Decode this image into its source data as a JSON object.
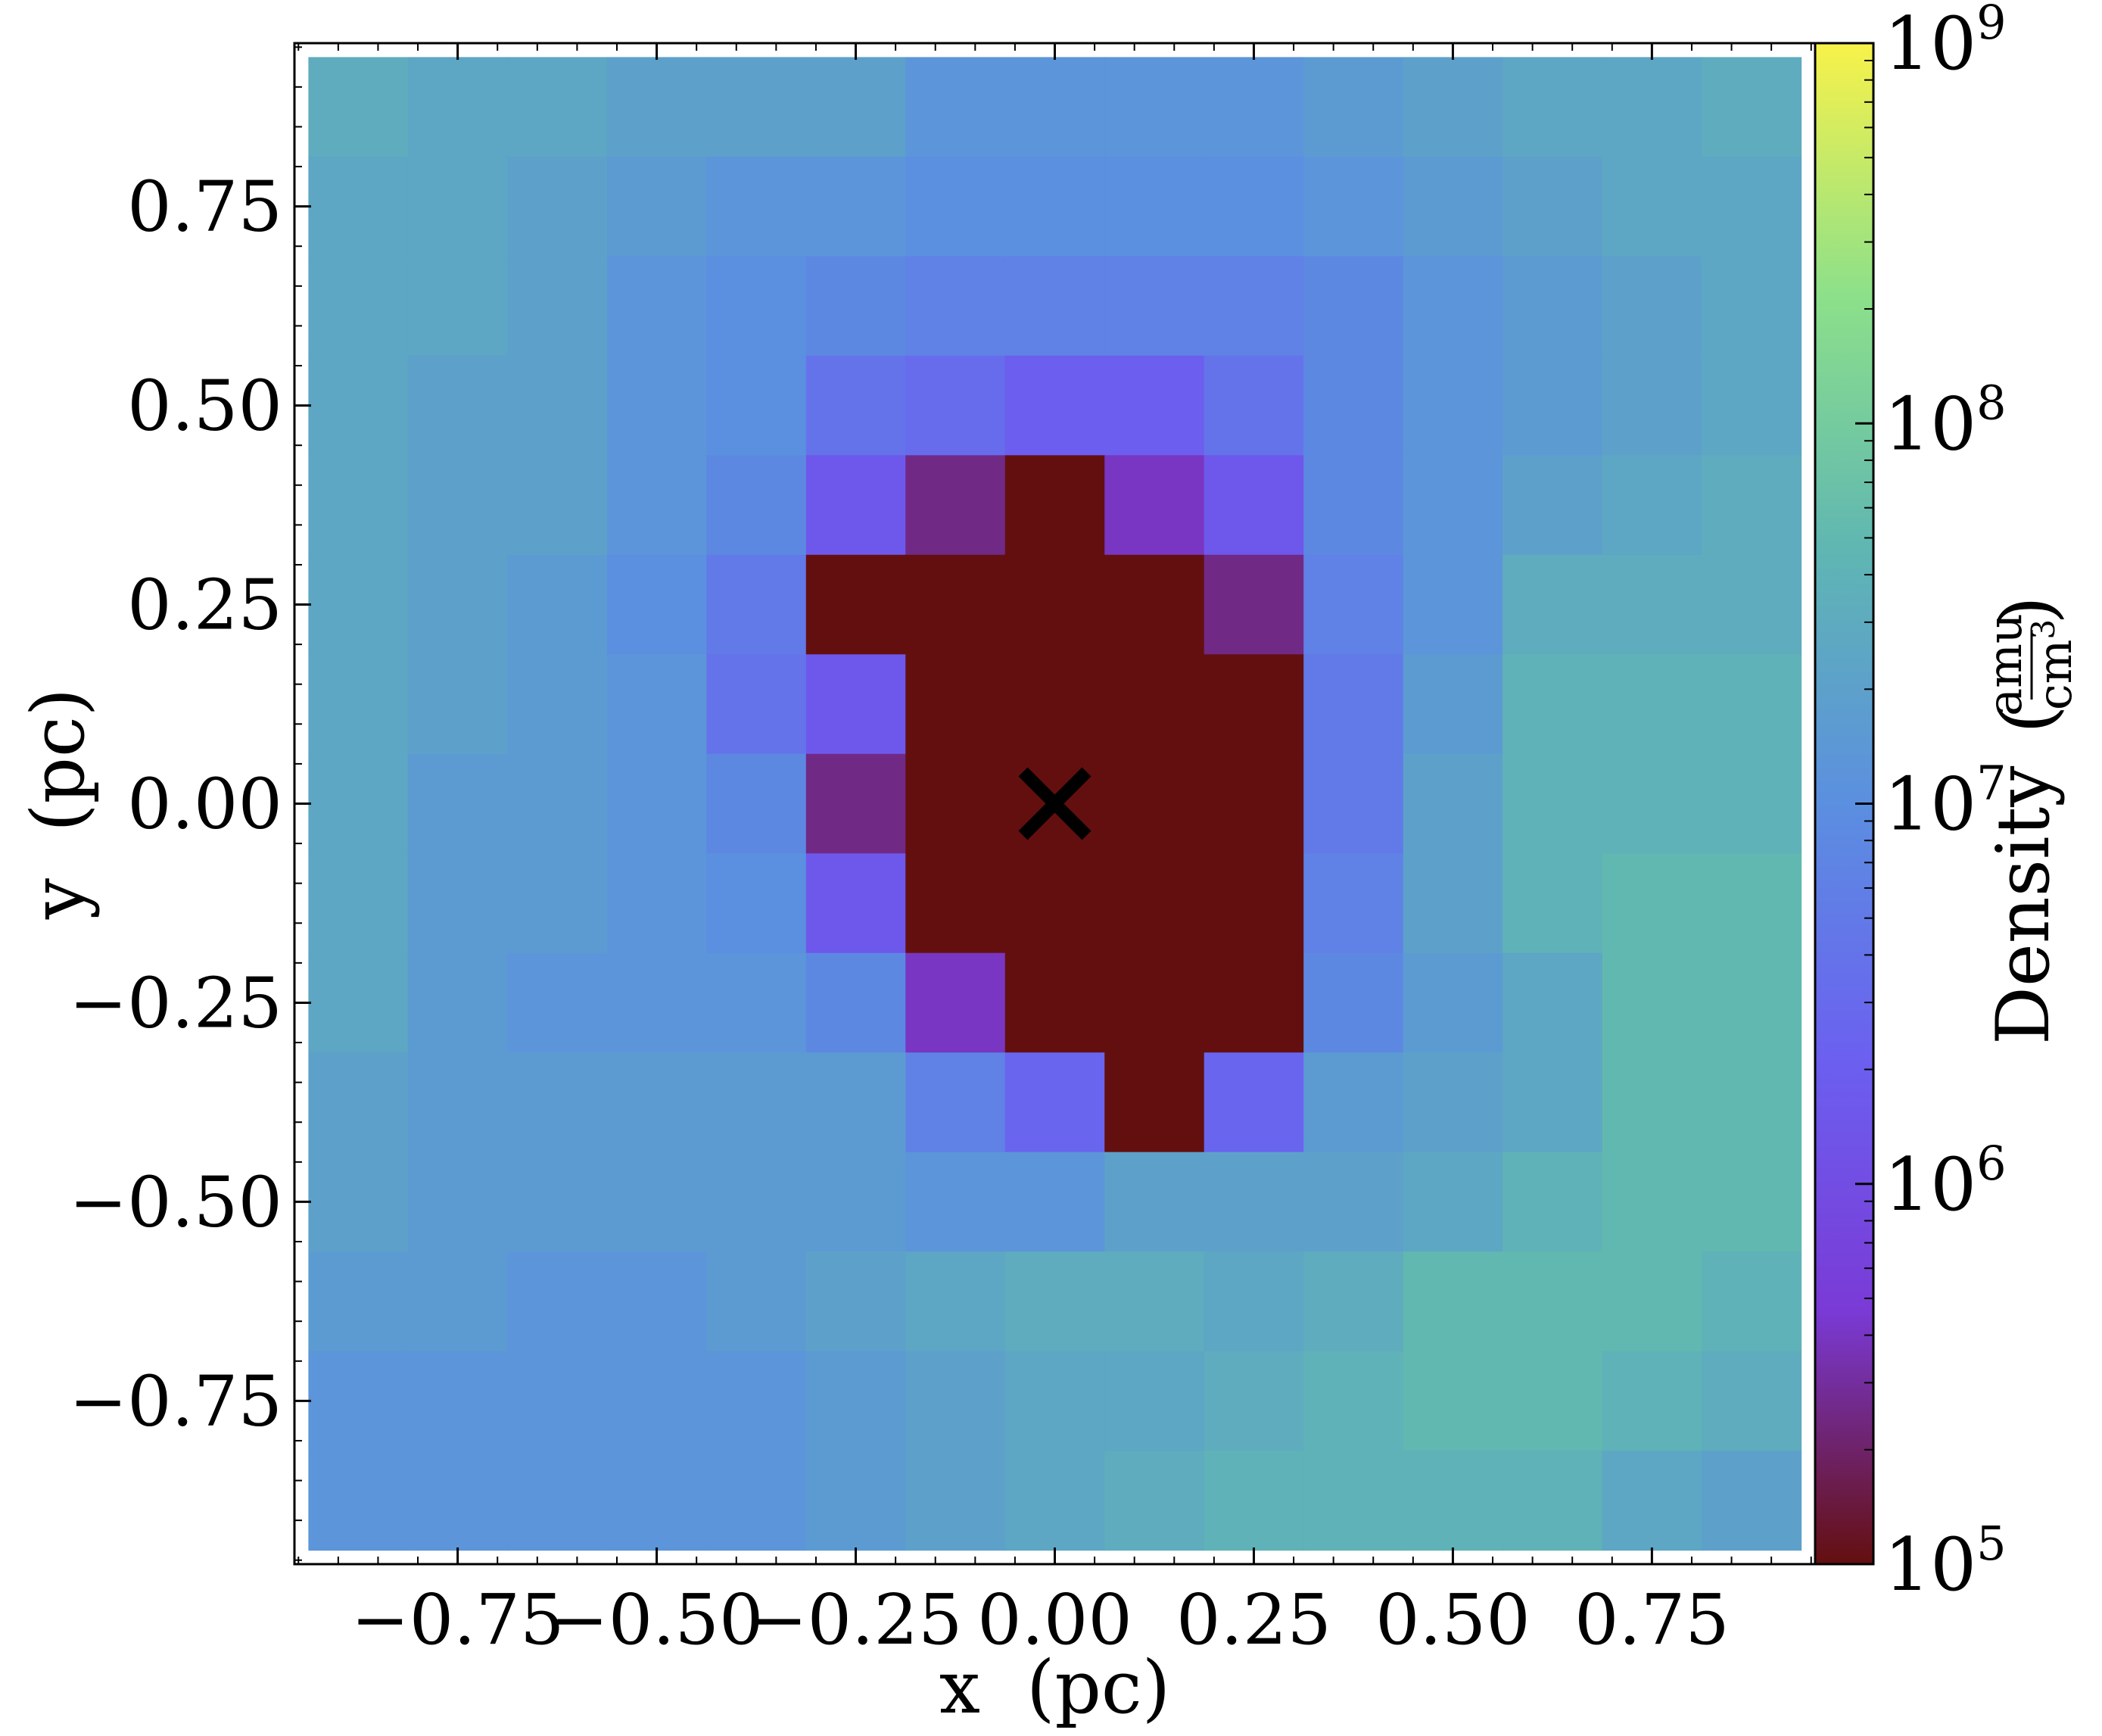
{
  "chart_data": {
    "type": "heatmap",
    "title": "",
    "xlabel": "x  (pc)",
    "ylabel": "y  (pc)",
    "xlim": [
      -0.955,
      0.955
    ],
    "ylim": [
      -0.955,
      0.955
    ],
    "x_ticks": [
      -0.75,
      -0.5,
      -0.25,
      0.0,
      0.25,
      0.5,
      0.75
    ],
    "x_tick_labels": [
      "−0.75",
      "−0.50",
      "−0.25",
      "0.00",
      "0.25",
      "0.50",
      "0.75"
    ],
    "y_ticks": [
      -0.75,
      -0.5,
      -0.25,
      0.0,
      0.25,
      0.5,
      0.75
    ],
    "y_tick_labels": [
      "−0.75",
      "−0.50",
      "−0.25",
      "0.00",
      "0.25",
      "0.50",
      "0.75"
    ],
    "grid": false,
    "marker": {
      "symbol": "x",
      "x": 0.0,
      "y": 0.0,
      "color": "#000000"
    },
    "colorbar": {
      "label": "Density",
      "unit_numerator": "amu",
      "unit_denominator": "cm",
      "unit_denominator_exponent": "3",
      "scale": "log",
      "range": [
        100000,
        1000000000
      ],
      "ticks": [
        {
          "base": "10",
          "exp": "5",
          "value": 100000
        },
        {
          "base": "10",
          "exp": "6",
          "value": 1000000
        },
        {
          "base": "10",
          "exp": "7",
          "value": 10000000
        },
        {
          "base": "10",
          "exp": "8",
          "value": 100000000
        },
        {
          "base": "10",
          "exp": "9",
          "value": 1000000000
        }
      ],
      "colormap_stops": [
        "#640f0f",
        "#7a3ad6",
        "#6b60f0",
        "#5b8fe0",
        "#5fb6b2",
        "#8ce08a",
        "#f8f24a"
      ]
    },
    "grid_cell_size_pc": 0.125,
    "grid_x_centers": [
      -0.875,
      -0.75,
      -0.625,
      -0.5,
      -0.375,
      -0.25,
      -0.125,
      0.0,
      0.125,
      0.25,
      0.375,
      0.5,
      0.625,
      0.75,
      0.875
    ],
    "grid_y_centers": [
      0.875,
      0.75,
      0.625,
      0.5,
      0.375,
      0.25,
      0.125,
      0.0,
      -0.125,
      -0.25,
      -0.375,
      -0.5,
      -0.625,
      -0.75,
      -0.875
    ],
    "log10_density": [
      [
        7.5,
        7.4,
        7.4,
        7.3,
        7.3,
        7.3,
        7.1,
        7.1,
        7.1,
        7.1,
        7.2,
        7.3,
        7.4,
        7.4,
        7.5
      ],
      [
        7.4,
        7.4,
        7.3,
        7.2,
        7.1,
        7.1,
        7.0,
        7.0,
        7.0,
        7.0,
        7.1,
        7.2,
        7.3,
        7.4,
        7.4
      ],
      [
        7.4,
        7.4,
        7.3,
        7.1,
        7.0,
        6.9,
        6.8,
        6.8,
        6.8,
        6.8,
        6.9,
        7.1,
        7.2,
        7.3,
        7.4
      ],
      [
        7.4,
        7.3,
        7.3,
        7.1,
        7.0,
        6.6,
        6.5,
        6.3,
        6.3,
        6.6,
        6.9,
        7.1,
        7.2,
        7.3,
        7.4
      ],
      [
        7.4,
        7.3,
        7.3,
        7.1,
        6.9,
        6.2,
        5.4,
        5.0,
        5.6,
        6.2,
        6.9,
        7.1,
        7.3,
        7.4,
        7.5
      ],
      [
        7.4,
        7.3,
        7.2,
        7.0,
        6.7,
        5.0,
        5.0,
        5.0,
        5.0,
        5.4,
        6.8,
        7.1,
        7.5,
        7.5,
        7.5
      ],
      [
        7.4,
        7.3,
        7.2,
        7.1,
        6.6,
        6.2,
        5.0,
        5.0,
        5.0,
        5.0,
        6.7,
        7.2,
        7.6,
        7.6,
        7.6
      ],
      [
        7.4,
        7.2,
        7.2,
        7.1,
        6.9,
        5.4,
        5.0,
        5.0,
        5.0,
        5.0,
        6.7,
        7.3,
        7.6,
        7.6,
        7.6
      ],
      [
        7.4,
        7.2,
        7.2,
        7.1,
        7.0,
        6.2,
        5.0,
        5.0,
        5.0,
        5.0,
        6.8,
        7.3,
        7.6,
        7.7,
        7.7
      ],
      [
        7.4,
        7.2,
        7.1,
        7.1,
        7.1,
        6.9,
        5.6,
        5.0,
        5.0,
        5.0,
        6.9,
        7.2,
        7.4,
        7.7,
        7.7
      ],
      [
        7.3,
        7.2,
        7.2,
        7.2,
        7.2,
        7.2,
        6.8,
        6.4,
        5.0,
        6.4,
        7.2,
        7.3,
        7.4,
        7.7,
        7.7
      ],
      [
        7.3,
        7.2,
        7.2,
        7.2,
        7.2,
        7.2,
        7.1,
        7.1,
        7.3,
        7.3,
        7.3,
        7.4,
        7.6,
        7.7,
        7.7
      ],
      [
        7.2,
        7.2,
        7.1,
        7.1,
        7.2,
        7.3,
        7.4,
        7.5,
        7.5,
        7.4,
        7.5,
        7.7,
        7.7,
        7.7,
        7.6
      ],
      [
        7.1,
        7.1,
        7.1,
        7.1,
        7.1,
        7.2,
        7.3,
        7.4,
        7.4,
        7.5,
        7.6,
        7.7,
        7.7,
        7.6,
        7.5
      ],
      [
        7.1,
        7.1,
        7.1,
        7.1,
        7.1,
        7.2,
        7.3,
        7.4,
        7.5,
        7.6,
        7.6,
        7.6,
        7.6,
        7.4,
        7.3
      ]
    ]
  }
}
